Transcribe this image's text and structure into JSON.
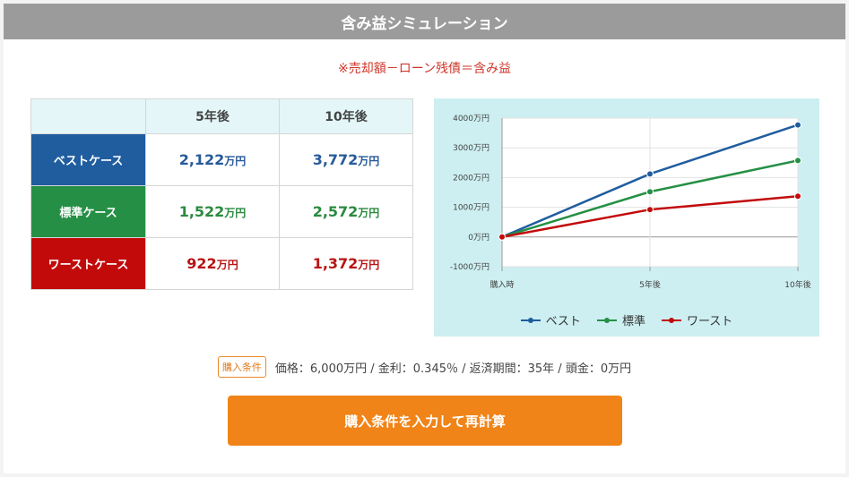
{
  "header": {
    "title": "含み益シミュレーション"
  },
  "formula": "※売却額－ローン残債＝含み益",
  "table": {
    "columns": [
      "5年後",
      "10年後"
    ],
    "unit": "万円",
    "rows": [
      {
        "label": "ベストケース",
        "values": [
          "2,122",
          "3,772"
        ],
        "color": "#1f5d9f"
      },
      {
        "label": "標準ケース",
        "values": [
          "1,522",
          "2,572"
        ],
        "color": "#259045"
      },
      {
        "label": "ワーストケース",
        "values": [
          "922",
          "1,372"
        ],
        "color": "#c20a0a"
      }
    ]
  },
  "chart_data": {
    "type": "line",
    "x": [
      "購入時",
      "5年後",
      "10年後"
    ],
    "y_ticks": [
      "4000万円",
      "3000万円",
      "2000万円",
      "1000万円",
      "0万円",
      "-1000万円"
    ],
    "ylim": [
      -1000,
      4000
    ],
    "series": [
      {
        "name": "ベスト",
        "values": [
          0,
          2122,
          3772
        ],
        "color": "#1f5d9f"
      },
      {
        "name": "標準",
        "values": [
          0,
          1522,
          2572
        ],
        "color": "#259045"
      },
      {
        "name": "ワースト",
        "values": [
          0,
          922,
          1372
        ],
        "color": "#c20a0a"
      }
    ],
    "legend_position": "bottom"
  },
  "conditions": {
    "badge": "購入条件",
    "text": "価格：6,000万円 / 金利：0.345％ / 返済期間：35年 / 頭金：0万円"
  },
  "button": {
    "label": "購入条件を入力して再計算"
  }
}
